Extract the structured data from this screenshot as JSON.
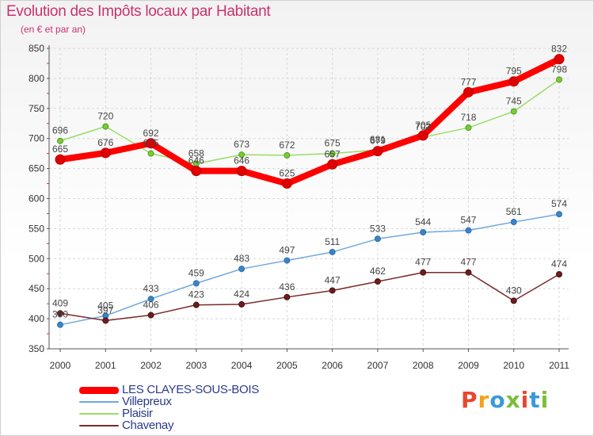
{
  "title": "Evolution des Impôts locaux par Habitant",
  "subtitle": "(en € et par an)",
  "logo": {
    "text": "Proxiti",
    "colors": [
      "#e8472f",
      "#f2a31b",
      "#3a9ad9",
      "#7cbd3b",
      "#e8472f",
      "#3a9ad9",
      "#7cbd3b"
    ]
  },
  "chart_data": {
    "type": "line",
    "title": "Evolution des Impôts locaux par Habitant",
    "subtitle": "(en € et par an)",
    "xlabel": "",
    "ylabel": "",
    "x": [
      "2000",
      "2001",
      "2002",
      "2003",
      "2004",
      "2005",
      "2006",
      "2007",
      "2008",
      "2009",
      "2010",
      "2011"
    ],
    "ylim": [
      350,
      850
    ],
    "yticks": [
      350,
      400,
      450,
      500,
      550,
      600,
      650,
      700,
      750,
      800,
      850
    ],
    "grid": true,
    "legend_position": "bottom-left",
    "series": [
      {
        "name": "LES CLAYES-SOUS-BOIS",
        "color": "#ff0000",
        "values": [
          665,
          676,
          692,
          646,
          646,
          625,
          657,
          679,
          705,
          777,
          795,
          832
        ]
      },
      {
        "name": "Villepreux",
        "color": "#6fa8dc",
        "values": [
          390,
          405,
          433,
          459,
          483,
          497,
          511,
          533,
          544,
          547,
          561,
          574
        ]
      },
      {
        "name": "Plaisir",
        "color": "#99dd66",
        "values": [
          696,
          720,
          675,
          658,
          673,
          672,
          675,
          681,
          702,
          718,
          745,
          798
        ]
      },
      {
        "name": "Chavenay",
        "color": "#7a2a2a",
        "values": [
          409,
          397,
          406,
          423,
          424,
          436,
          447,
          462,
          477,
          477,
          430,
          474
        ]
      }
    ]
  }
}
